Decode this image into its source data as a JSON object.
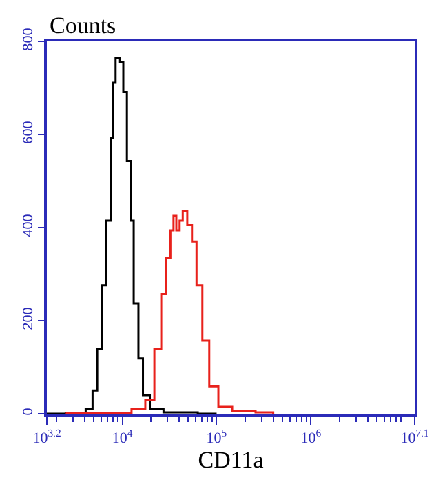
{
  "chart_data": {
    "type": "step",
    "ylabel": "Counts",
    "xlabel": "CD11a",
    "log": "x",
    "xlim": [
      1585,
      12590000
    ],
    "ylim": [
      0,
      800
    ],
    "xticks": [
      {
        "value": 1585,
        "label": "10$^{3.2}$"
      },
      {
        "value": 10000,
        "label": "10$^{4}$"
      },
      {
        "value": 100000,
        "label": "10$^{5}$"
      },
      {
        "value": 1000000,
        "label": "10$^{6}$"
      },
      {
        "value": 12590000,
        "label": "10$^{7.1}$"
      }
    ],
    "yticks": [
      0,
      200,
      400,
      600,
      800
    ],
    "series": [
      {
        "color": "#000000",
        "x": [
          1585,
          2512,
          4090,
          4840,
          5420,
          6050,
          6760,
          7590,
          8000,
          8490,
          9460,
          10250,
          11190,
          12250,
          13210,
          14830,
          16560,
          19590,
          27350,
          63100,
          100000
        ],
        "values": [
          0,
          2,
          10,
          50,
          139,
          276,
          415,
          593,
          711,
          765,
          755,
          691,
          543,
          415,
          237,
          119,
          40,
          10,
          3,
          0,
          0
        ]
      },
      {
        "color": "#e8211b",
        "x": [
          2512,
          12530,
          17540,
          21880,
          25880,
          28970,
          32360,
          34910,
          37410,
          40550,
          43750,
          48870,
          54830,
          61240,
          70630,
          83560,
          104400,
          146200,
          258800,
          398100
        ],
        "values": [
          2,
          10,
          30,
          139,
          257,
          335,
          394,
          425,
          394,
          415,
          435,
          405,
          370,
          276,
          157,
          59,
          15,
          5,
          3,
          0
        ]
      }
    ]
  }
}
